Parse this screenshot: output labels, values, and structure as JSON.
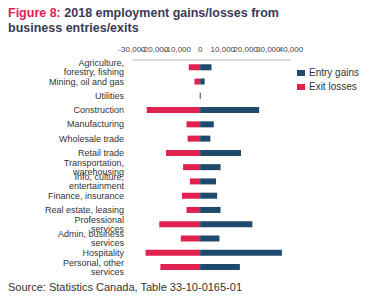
{
  "chart_data": {
    "type": "bar",
    "orientation": "horizontal",
    "stacked": true,
    "grid": false,
    "legend": "upper right",
    "title": "Figure 8: 2018 employment gains/losses from business entries/exits",
    "source": "Source: Statistics Canada, Table 33-10-0165-01",
    "categories": [
      "Agriculture, forestry, fishing",
      "Mining, oil and gas",
      "Utilities",
      "Construction",
      "Manufacturing",
      "Wholesale trade",
      "Retail trade",
      "Transportation, warehousing",
      "Info, culture, entertainment",
      "Finance, insurance",
      "Real estate, leasing",
      "Professional services",
      "Admin, business services",
      "Hospitality",
      "Personal, other services"
    ],
    "series": [
      {
        "name": "Exit losses",
        "color": "#e0204f",
        "values": [
          -5000,
          -2500,
          -200,
          -23500,
          -6000,
          -5500,
          -15000,
          -7500,
          -4500,
          -8000,
          -6000,
          -18000,
          -8500,
          -24000,
          -17500
        ]
      },
      {
        "name": "Entry gains",
        "color": "#1f4a6b",
        "values": [
          5000,
          2000,
          300,
          26000,
          6000,
          4500,
          18000,
          9000,
          7000,
          7500,
          9000,
          23000,
          8500,
          36000,
          17500
        ]
      }
    ],
    "xlim": [
      -30000,
      40000
    ],
    "xticks": [
      {
        "value": -30000,
        "label": "-30,000"
      },
      {
        "value": -20000,
        "label": "-20,000"
      },
      {
        "value": -10000,
        "label": "-10,000"
      },
      0,
      {
        "value": 10000,
        "label": "10,000"
      },
      {
        "value": 20000,
        "label": "20,000"
      },
      {
        "value": 30000,
        "label": "30,000"
      },
      {
        "value": 40000,
        "label": "40,000"
      }
    ]
  }
}
